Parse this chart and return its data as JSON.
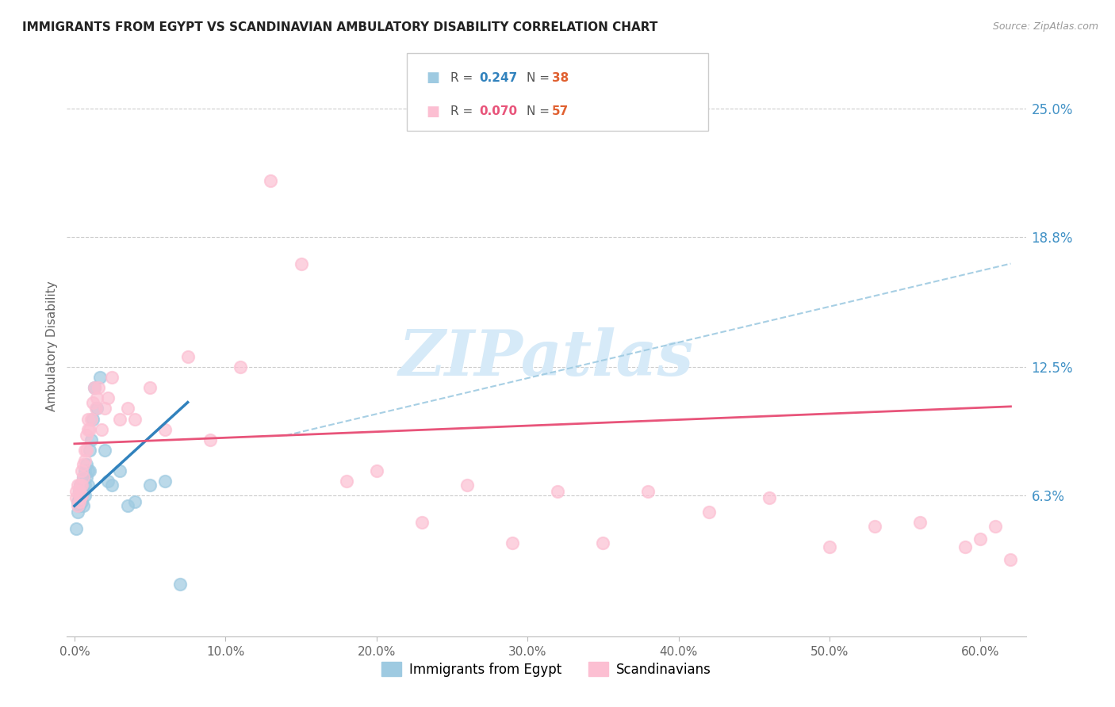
{
  "title": "IMMIGRANTS FROM EGYPT VS SCANDINAVIAN AMBULATORY DISABILITY CORRELATION CHART",
  "source": "Source: ZipAtlas.com",
  "ylabel": "Ambulatory Disability",
  "ytick_labels": [
    "6.3%",
    "12.5%",
    "18.8%",
    "25.0%"
  ],
  "ytick_vals": [
    0.063,
    0.125,
    0.188,
    0.25
  ],
  "xtick_labels": [
    "0.0%",
    "10.0%",
    "20.0%",
    "30.0%",
    "40.0%",
    "50.0%",
    "60.0%"
  ],
  "xtick_vals": [
    0.0,
    0.1,
    0.2,
    0.3,
    0.4,
    0.5,
    0.6
  ],
  "ylim": [
    -0.005,
    0.275
  ],
  "xlim": [
    -0.005,
    0.63
  ],
  "color_blue": "#9ecae1",
  "color_pink": "#fcbfd2",
  "color_blue_line": "#3182bd",
  "color_pink_line": "#e8547a",
  "color_blue_dash": "#9ecae1",
  "watermark_color": "#d6eaf8",
  "egypt_x": [
    0.001,
    0.002,
    0.002,
    0.003,
    0.003,
    0.003,
    0.004,
    0.004,
    0.004,
    0.005,
    0.005,
    0.005,
    0.006,
    0.006,
    0.006,
    0.007,
    0.007,
    0.007,
    0.008,
    0.008,
    0.009,
    0.009,
    0.01,
    0.01,
    0.011,
    0.012,
    0.013,
    0.015,
    0.017,
    0.02,
    0.022,
    0.025,
    0.03,
    0.035,
    0.04,
    0.05,
    0.06,
    0.07
  ],
  "egypt_y": [
    0.047,
    0.055,
    0.06,
    0.058,
    0.062,
    0.065,
    0.06,
    0.062,
    0.068,
    0.06,
    0.063,
    0.068,
    0.058,
    0.065,
    0.072,
    0.063,
    0.068,
    0.075,
    0.072,
    0.078,
    0.068,
    0.075,
    0.075,
    0.085,
    0.09,
    0.1,
    0.115,
    0.105,
    0.12,
    0.085,
    0.07,
    0.068,
    0.075,
    0.058,
    0.06,
    0.068,
    0.07,
    0.02
  ],
  "scand_x": [
    0.001,
    0.001,
    0.002,
    0.002,
    0.003,
    0.003,
    0.004,
    0.004,
    0.005,
    0.005,
    0.005,
    0.006,
    0.006,
    0.007,
    0.007,
    0.008,
    0.008,
    0.009,
    0.009,
    0.01,
    0.011,
    0.012,
    0.013,
    0.014,
    0.015,
    0.016,
    0.018,
    0.02,
    0.022,
    0.025,
    0.03,
    0.035,
    0.04,
    0.05,
    0.06,
    0.075,
    0.09,
    0.11,
    0.13,
    0.15,
    0.18,
    0.2,
    0.23,
    0.26,
    0.29,
    0.32,
    0.35,
    0.38,
    0.42,
    0.46,
    0.5,
    0.53,
    0.56,
    0.59,
    0.6,
    0.61,
    0.62
  ],
  "scand_y": [
    0.062,
    0.065,
    0.058,
    0.068,
    0.06,
    0.065,
    0.062,
    0.068,
    0.063,
    0.068,
    0.075,
    0.072,
    0.078,
    0.08,
    0.085,
    0.085,
    0.092,
    0.095,
    0.1,
    0.095,
    0.1,
    0.108,
    0.115,
    0.105,
    0.11,
    0.115,
    0.095,
    0.105,
    0.11,
    0.12,
    0.1,
    0.105,
    0.1,
    0.115,
    0.095,
    0.13,
    0.09,
    0.125,
    0.215,
    0.175,
    0.07,
    0.075,
    0.05,
    0.068,
    0.04,
    0.065,
    0.04,
    0.065,
    0.055,
    0.062,
    0.038,
    0.048,
    0.05,
    0.038,
    0.042,
    0.048,
    0.032
  ],
  "egypt_line_x0": 0.0,
  "egypt_line_x1": 0.075,
  "egypt_line_y0": 0.058,
  "egypt_line_y1": 0.108,
  "scand_line_x0": 0.0,
  "scand_line_x1": 0.62,
  "scand_line_y0": 0.088,
  "scand_line_y1": 0.106,
  "dash_line_x0": 0.14,
  "dash_line_x1": 0.62,
  "dash_line_y0": 0.092,
  "dash_line_y1": 0.175
}
